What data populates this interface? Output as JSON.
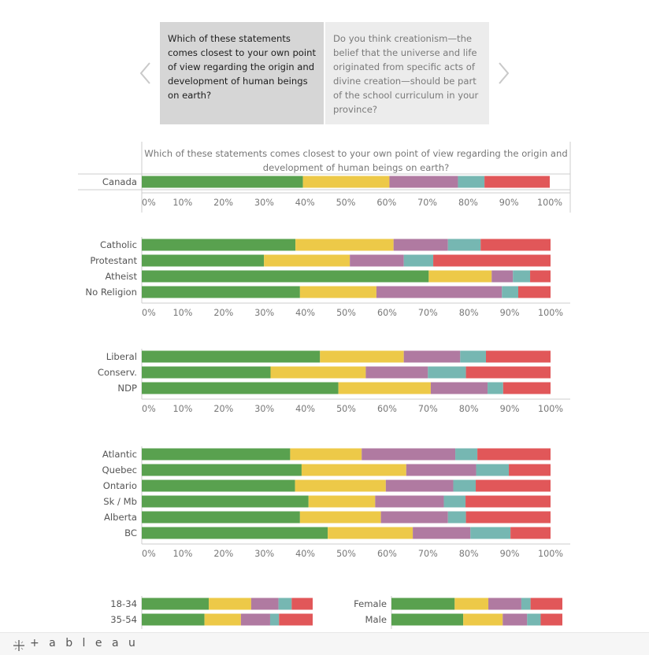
{
  "story": {
    "points": [
      {
        "text": " Which of these statements comes closest to your own point of view regarding the origin and development of human beings on earth?"
      },
      {
        "text": "Do you think creationism—the belief that the universe and life originated from specific acts of divine creation—should be part of the school curriculum in your province?"
      }
    ],
    "active_index": 0
  },
  "footer": {
    "logo_text": "+ a b l e a u"
  },
  "colors": {
    "segments": [
      "#59a14f",
      "#edc948",
      "#b07aa1",
      "#76b7b2",
      "#e15759"
    ],
    "axis": "#cccccc",
    "nav_arrow": "#c9c9c9"
  },
  "chart_data": {
    "type": "bar",
    "orientation": "horizontal",
    "stacked": true,
    "title": "Which of these statements comes closest to your own point of view regarding the origin and development of human beings on earth?",
    "xlim": [
      0,
      1
    ],
    "ticks": [
      "0%",
      "10%",
      "20%",
      "30%",
      "40%",
      "50%",
      "60%",
      "70%",
      "80%",
      "90%",
      "100%"
    ],
    "panels": [
      {
        "id": "overall",
        "rows": [
          {
            "label": "Canada",
            "values": [
              0.395,
              0.212,
              0.168,
              0.065,
              0.16
            ]
          }
        ]
      },
      {
        "id": "religion",
        "rows": [
          {
            "label": "Catholic",
            "values": [
              0.376,
              0.24,
              0.133,
              0.08,
              0.171
            ]
          },
          {
            "label": "Protestant",
            "values": [
              0.299,
              0.21,
              0.132,
              0.072,
              0.287
            ]
          },
          {
            "label": "Atheist",
            "values": [
              0.702,
              0.154,
              0.052,
              0.042,
              0.05
            ]
          },
          {
            "label": "No Religion",
            "values": [
              0.387,
              0.187,
              0.307,
              0.04,
              0.079
            ]
          }
        ]
      },
      {
        "id": "party",
        "rows": [
          {
            "label": "Liberal",
            "values": [
              0.436,
              0.205,
              0.138,
              0.063,
              0.158
            ]
          },
          {
            "label": "Conserv.",
            "values": [
              0.315,
              0.233,
              0.152,
              0.093,
              0.207
            ]
          },
          {
            "label": "NDP",
            "values": [
              0.481,
              0.226,
              0.139,
              0.038,
              0.116
            ]
          }
        ]
      },
      {
        "id": "region",
        "rows": [
          {
            "label": "Atlantic",
            "values": [
              0.363,
              0.175,
              0.229,
              0.054,
              0.179
            ]
          },
          {
            "label": "Quebec",
            "values": [
              0.391,
              0.256,
              0.171,
              0.08,
              0.102
            ]
          },
          {
            "label": "Ontario",
            "values": [
              0.375,
              0.222,
              0.165,
              0.055,
              0.183
            ]
          },
          {
            "label": "Sk / Mb",
            "values": [
              0.408,
              0.163,
              0.168,
              0.053,
              0.208
            ]
          },
          {
            "label": "Alberta",
            "values": [
              0.387,
              0.198,
              0.164,
              0.044,
              0.207
            ]
          },
          {
            "label": "BC",
            "values": [
              0.455,
              0.208,
              0.141,
              0.098,
              0.098
            ]
          }
        ]
      },
      {
        "id": "age",
        "rows": [
          {
            "label": "18-34",
            "values": [
              0.392,
              0.248,
              0.16,
              0.077,
              0.123
            ]
          },
          {
            "label": "35-54",
            "values": [
              0.367,
              0.213,
              0.171,
              0.052,
              0.197
            ]
          }
        ]
      },
      {
        "id": "gender",
        "rows": [
          {
            "label": "Female",
            "values": [
              0.37,
              0.197,
              0.193,
              0.054,
              0.186
            ]
          },
          {
            "label": "Male",
            "values": [
              0.42,
              0.231,
              0.143,
              0.079,
              0.127
            ]
          }
        ]
      }
    ]
  }
}
